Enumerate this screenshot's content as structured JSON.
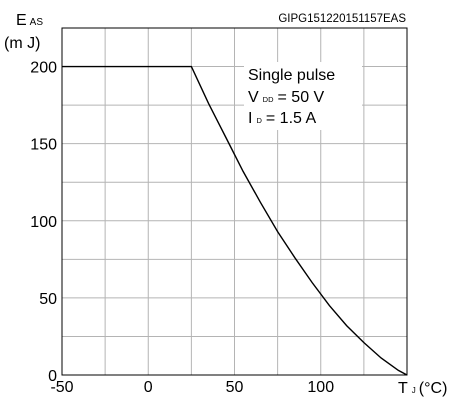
{
  "figure_id": "GIPG151220151157EAS",
  "y_axis": {
    "symbol": "E",
    "subscript": "AS",
    "unit": "(m J)"
  },
  "x_axis": {
    "symbol": "T",
    "subscript": "J",
    "unit": "(°C)"
  },
  "annotation": {
    "line1": "Single pulse",
    "line2_symbol": "V",
    "line2_sub": "DD",
    "line2_value": "= 50 V",
    "line3_symbol": "I",
    "line3_sub": "D",
    "line3_value": "= 1.5 A"
  },
  "chart_data": {
    "type": "line",
    "xlim": [
      -50,
      150
    ],
    "ylim": [
      0,
      225
    ],
    "x_ticks": [
      -50,
      0,
      50,
      100
    ],
    "y_ticks": [
      0,
      50,
      100,
      150,
      200
    ],
    "grid": true,
    "series": [
      {
        "x": [
          -50,
          25,
          35,
          45,
          55,
          65,
          75,
          85,
          95,
          105,
          115,
          125,
          135,
          145,
          150
        ],
        "y": [
          200,
          200,
          176,
          154,
          132,
          112,
          93,
          76,
          60,
          45,
          32,
          21,
          11,
          3,
          0
        ]
      }
    ]
  }
}
